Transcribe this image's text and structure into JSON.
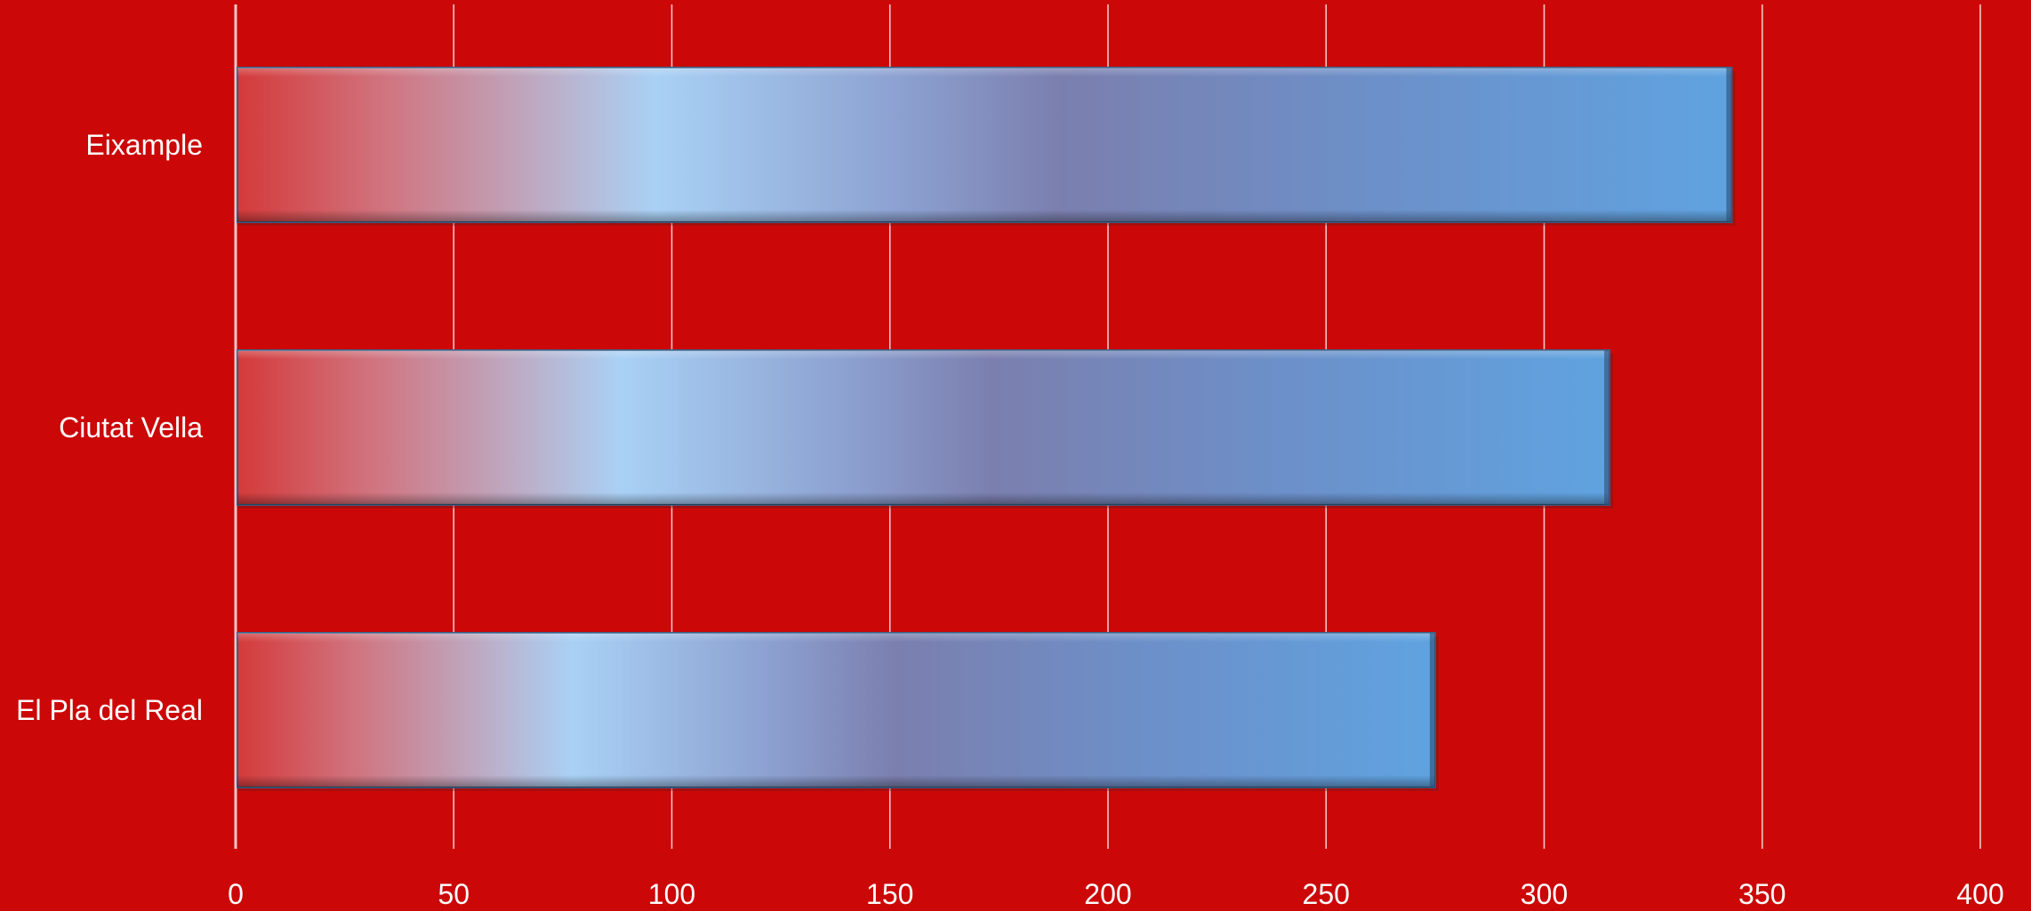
{
  "chart_data": {
    "type": "bar",
    "orientation": "horizontal",
    "categories": [
      "Eixample",
      "Ciutat Vella",
      "El Pla del Real"
    ],
    "values": [
      343,
      315,
      275
    ],
    "xlim": [
      0,
      400
    ],
    "x_ticks": [
      "0",
      "50",
      "100",
      "150",
      "200",
      "250",
      "300",
      "350",
      "400"
    ],
    "x_tick_values": [
      0,
      50,
      100,
      150,
      200,
      250,
      300,
      350,
      400
    ],
    "grid": "vertical",
    "legend": "none",
    "title": "",
    "xlabel": "",
    "ylabel": ""
  },
  "colors": {
    "background": "#cc0707",
    "grid": "#f0c8c8",
    "text": "#ffffff",
    "bar_light": "#a9d1f5",
    "bar_mid": "#7b7fae",
    "bar_end": "#5fa3e0"
  }
}
